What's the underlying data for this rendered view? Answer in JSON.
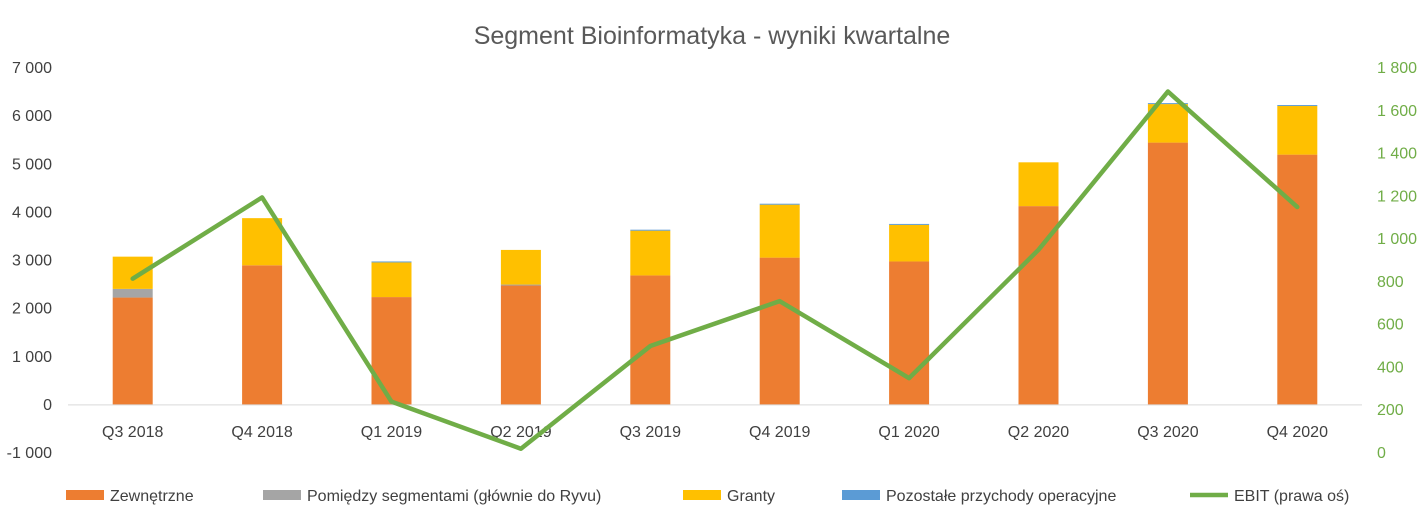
{
  "chart_data": {
    "type": "bar",
    "stacked": true,
    "title": "Segment Bioinformatyka - wyniki kwartalne",
    "categories": [
      "Q3 2018",
      "Q4 2018",
      "Q1 2019",
      "Q2 2019",
      "Q3 2019",
      "Q4 2019",
      "Q1 2020",
      "Q2 2020",
      "Q3 2020",
      "Q4 2020"
    ],
    "series": [
      {
        "name": "Zewnętrzne",
        "color": "#ed7d31",
        "axis": "left",
        "values": [
          2230,
          2900,
          2240,
          2480,
          2690,
          3060,
          2980,
          4130,
          5450,
          5200
        ]
      },
      {
        "name": "Pomiędzy segmentami (głównie do Ryvu)",
        "color": "#a5a5a5",
        "axis": "left",
        "values": [
          180,
          0,
          0,
          20,
          0,
          0,
          0,
          0,
          0,
          0
        ]
      },
      {
        "name": "Granty",
        "color": "#ffc000",
        "axis": "left",
        "values": [
          670,
          980,
          720,
          720,
          930,
          1100,
          760,
          910,
          800,
          1010
        ]
      },
      {
        "name": "Pozostałe przychody operacyjne",
        "color": "#5b9bd5",
        "axis": "left",
        "values": [
          0,
          0,
          20,
          0,
          20,
          20,
          20,
          0,
          20,
          20
        ]
      },
      {
        "name": "EBIT (prawa oś)",
        "color": "#70ad47",
        "axis": "right",
        "type": "line",
        "values": [
          815,
          1195,
          240,
          20,
          500,
          710,
          350,
          950,
          1690,
          1150
        ]
      }
    ],
    "y_left": {
      "min": -1000,
      "max": 7000,
      "step": 1000,
      "ticks": [
        "-1 000",
        "0",
        "1 000",
        "2 000",
        "3 000",
        "4 000",
        "5 000",
        "6 000",
        "7 000"
      ]
    },
    "y_right": {
      "min": 0,
      "max": 1800,
      "step": 200,
      "ticks": [
        "0",
        "200",
        "400",
        "600",
        "800",
        "1 000",
        "1 200",
        "1 400",
        "1 600",
        "1 800"
      ]
    },
    "grid": false,
    "legend": "bottom"
  }
}
